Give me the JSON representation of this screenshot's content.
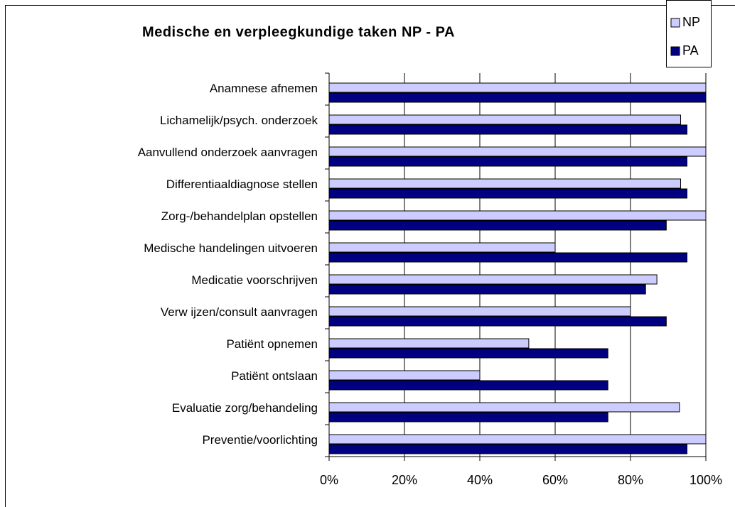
{
  "chart_data": {
    "type": "barh",
    "title": "Medische en verpleegkundige taken NP - PA",
    "categories": [
      "Anamnese afnemen",
      "Lichamelijk/psych. onderzoek",
      "Aanvullend onderzoek aanvragen",
      "Differentiaaldiagnose stellen",
      "Zorg-/behandelplan opstellen",
      "Medische handelingen uitvoeren",
      "Medicatie voorschrijven",
      "Verw ijzen/consult aanvragen",
      "Patiënt opnemen",
      "Patiënt ontslaan",
      "Evaluatie zorg/behandeling",
      "Preventie/voorlichting"
    ],
    "series": [
      {
        "name": "NP",
        "color": "#ccccff",
        "values": [
          100,
          93.3,
          100,
          93.3,
          100,
          60,
          87,
          80,
          53,
          40,
          93,
          100
        ]
      },
      {
        "name": "PA",
        "color": "#000080",
        "values": [
          100,
          95,
          95,
          95,
          89.5,
          95,
          84,
          89.5,
          74,
          74,
          74,
          95
        ]
      }
    ],
    "xlim": [
      0,
      100
    ],
    "xticks": [
      {
        "value": 0,
        "label": "0%"
      },
      {
        "value": 20,
        "label": "20%"
      },
      {
        "value": 40,
        "label": "40%"
      },
      {
        "value": 60,
        "label": "60%"
      },
      {
        "value": 80,
        "label": "80%"
      },
      {
        "value": 100,
        "label": "100%"
      }
    ],
    "grid": true,
    "legend": "top-right"
  }
}
